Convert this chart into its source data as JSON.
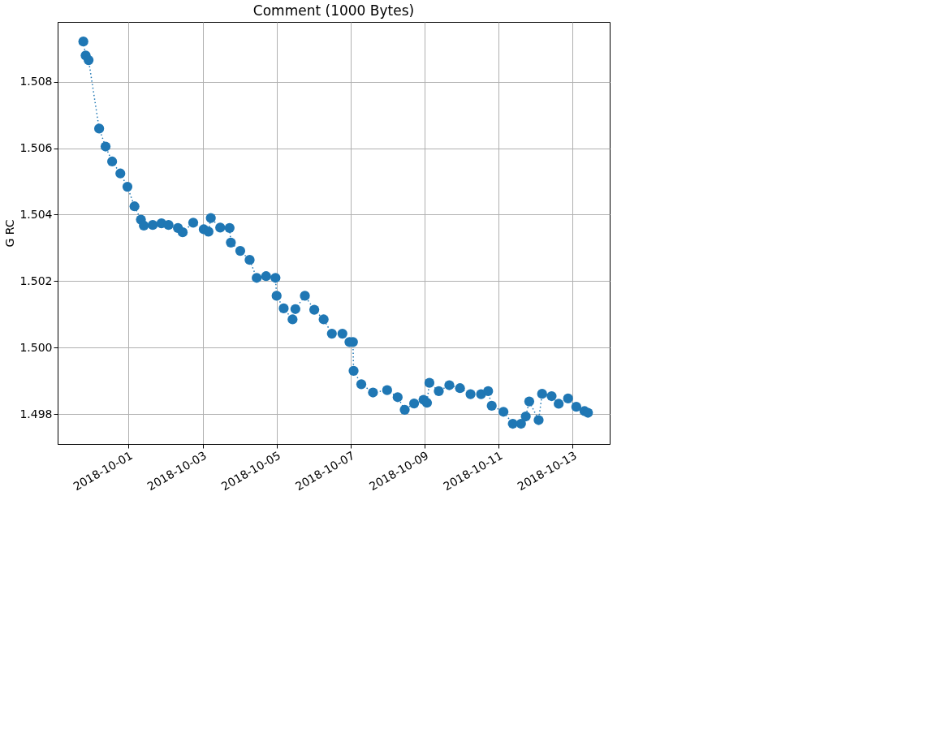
{
  "chart_data": {
    "type": "line",
    "title": "Comment (1000 Bytes)",
    "ylabel": "G RC",
    "marker": "circle",
    "line_style": "dotted",
    "grid": true,
    "xlim": [
      "2018-09-29T02:00",
      "2018-10-14T00:00"
    ],
    "xticks": [
      "2018-10-01",
      "2018-10-03",
      "2018-10-05",
      "2018-10-07",
      "2018-10-09",
      "2018-10-11",
      "2018-10-13"
    ],
    "ylim": [
      1.4971,
      1.5098
    ],
    "yticks": [
      1.498,
      {
        "value": 1.5,
        "label": "1.500"
      },
      1.502,
      1.504,
      1.506,
      1.508
    ],
    "series": [
      {
        "color": "#1f77b4",
        "x": [
          "2018-09-29T18:40",
          "2018-09-29T20:10",
          "2018-09-29T22:05",
          "2018-09-30T04:55",
          "2018-09-30T09:05",
          "2018-09-30T13:20",
          "2018-09-30T18:40",
          "2018-09-30T23:15",
          "2018-10-01T03:50",
          "2018-10-01T08:00",
          "2018-10-01T09:55",
          "2018-10-01T15:40",
          "2018-10-01T21:20",
          "2018-10-02T01:55",
          "2018-10-02T08:00",
          "2018-10-02T11:05",
          "2018-10-02T17:55",
          "2018-10-03T00:45",
          "2018-10-03T03:50",
          "2018-10-03T05:20",
          "2018-10-03T11:25",
          "2018-10-03T17:30",
          "2018-10-03T18:20",
          "2018-10-04T00:25",
          "2018-10-04T06:30",
          "2018-10-04T11:05",
          "2018-10-04T17:10",
          "2018-10-04T23:15",
          "2018-10-05T00:00",
          "2018-10-05T04:35",
          "2018-10-05T10:20",
          "2018-10-05T12:10",
          "2018-10-05T18:20",
          "2018-10-06T00:25",
          "2018-10-06T06:30",
          "2018-10-06T11:50",
          "2018-10-06T18:40",
          "2018-10-06T23:15",
          "2018-10-07T01:30",
          "2018-10-07T01:55",
          "2018-10-07T06:55",
          "2018-10-07T14:30",
          "2018-10-07T23:40",
          "2018-10-08T06:30",
          "2018-10-08T11:05",
          "2018-10-08T17:10",
          "2018-10-08T23:15",
          "2018-10-09T01:30",
          "2018-10-09T03:05",
          "2018-10-09T09:10",
          "2018-10-09T16:00",
          "2018-10-09T22:55",
          "2018-10-10T05:45",
          "2018-10-10T12:35",
          "2018-10-10T17:10",
          "2018-10-10T19:30",
          "2018-10-11T03:05",
          "2018-10-11T09:10",
          "2018-10-11T14:30",
          "2018-10-11T17:35",
          "2018-10-11T19:50",
          "2018-10-12T01:55",
          "2018-10-12T04:10",
          "2018-10-12T10:20",
          "2018-10-12T14:55",
          "2018-10-12T21:00",
          "2018-10-13T02:20",
          "2018-10-13T07:40",
          "2018-10-13T09:55"
        ],
        "values": [
          1.50921,
          1.50879,
          1.50865,
          1.50659,
          1.50605,
          1.5056,
          1.50524,
          1.50484,
          1.50425,
          1.50385,
          1.50367,
          1.50369,
          1.50374,
          1.50369,
          1.5036,
          1.50347,
          1.50376,
          1.50356,
          1.50349,
          1.5039,
          1.50361,
          1.5036,
          1.50316,
          1.50291,
          1.50264,
          1.5021,
          1.50215,
          1.5021,
          1.50156,
          1.50118,
          1.50085,
          1.50116,
          1.50156,
          1.50114,
          1.50085,
          1.50042,
          1.50042,
          1.50017,
          1.50017,
          1.4993,
          1.4989,
          1.49865,
          1.49872,
          1.49851,
          1.49813,
          1.49832,
          1.49843,
          1.49834,
          1.49894,
          1.49869,
          1.49887,
          1.49878,
          1.4986,
          1.4986,
          1.49869,
          1.49825,
          1.49807,
          1.49771,
          1.49771,
          1.49793,
          1.49838,
          1.49782,
          1.49861,
          1.49854,
          1.49831,
          1.49847,
          1.49822,
          1.49809,
          1.49804
        ]
      }
    ]
  }
}
